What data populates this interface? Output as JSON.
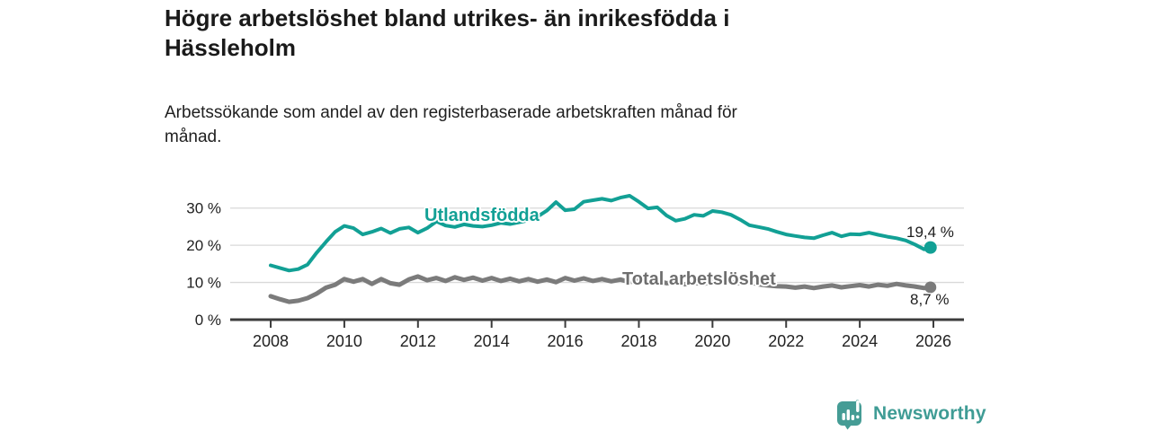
{
  "title": {
    "full": "Högre arbetslöshet bland utrikes- än inrikesfödda i Hässleholm",
    "lines": [
      "Högre arbetslöshet bland utrikes- än inrikesfödda i",
      "Hässleholm"
    ]
  },
  "subtitle": {
    "full": "Arbetssökande som andel av den registerbaserade arbetskraften månad för månad.",
    "lines": [
      "Arbetssökande som andel av den registerbaserade arbetskraften månad för",
      "månad."
    ]
  },
  "branding": {
    "logo_text": "Newsworthy",
    "logo_color": "#459c95",
    "logo_icon": "speech-bubble-bar-chart-exclamation"
  },
  "colors": {
    "background": "#ffffff",
    "title_text": "#1a1a1a",
    "axis_line": "#3c3c3c",
    "gridline": "#d9d9d9",
    "series_foreign_born": "#12a095",
    "series_total": "#7b7b7b"
  },
  "chart_data": {
    "type": "line",
    "title": "Högre arbetslöshet bland utrikes- än inrikesfödda i Hässleholm",
    "xlabel": "",
    "ylabel": "",
    "unit": "%",
    "grid": "horizontal",
    "legend_position": "inline-labels",
    "xlim": [
      2006.9,
      2026.83
    ],
    "ylim": [
      0,
      35
    ],
    "x_ticks": [
      2008,
      2010,
      2012,
      2014,
      2016,
      2018,
      2020,
      2022,
      2024,
      2026
    ],
    "x_tick_labels": [
      "2008",
      "2010",
      "2012",
      "2014",
      "2016",
      "2018",
      "2020",
      "2022",
      "2024",
      "2026"
    ],
    "y_ticks": [
      0,
      10,
      20,
      30
    ],
    "y_tick_labels": [
      "0 %",
      "10 %",
      "20 %",
      "30 %"
    ],
    "x": [
      2008.0,
      2008.25,
      2008.5,
      2008.75,
      2009.0,
      2009.25,
      2009.5,
      2009.75,
      2010.0,
      2010.25,
      2010.5,
      2010.75,
      2011.0,
      2011.25,
      2011.5,
      2011.75,
      2012.0,
      2012.25,
      2012.5,
      2012.75,
      2013.0,
      2013.25,
      2013.5,
      2013.75,
      2014.0,
      2014.25,
      2014.5,
      2014.75,
      2015.0,
      2015.25,
      2015.5,
      2015.75,
      2016.0,
      2016.25,
      2016.5,
      2016.75,
      2017.0,
      2017.25,
      2017.5,
      2017.75,
      2018.0,
      2018.25,
      2018.5,
      2018.75,
      2019.0,
      2019.25,
      2019.5,
      2019.75,
      2020.0,
      2020.25,
      2020.5,
      2020.75,
      2021.0,
      2021.25,
      2021.5,
      2021.75,
      2022.0,
      2022.25,
      2022.5,
      2022.75,
      2023.0,
      2023.25,
      2023.5,
      2023.75,
      2024.0,
      2024.25,
      2024.5,
      2024.75,
      2025.0,
      2025.25,
      2025.5,
      2025.75,
      2025.92
    ],
    "series": [
      {
        "name": "Utlandsfödda",
        "color": "#12a095",
        "stroke_width": 4,
        "end_label": "19,4 %",
        "last_value": 19.4,
        "values": [
          14.6,
          13.9,
          13.2,
          13.6,
          14.8,
          18.0,
          20.9,
          23.6,
          25.2,
          24.6,
          22.9,
          23.6,
          24.5,
          23.3,
          24.4,
          24.8,
          23.4,
          24.6,
          26.4,
          25.3,
          24.9,
          25.6,
          25.2,
          25.0,
          25.4,
          26.0,
          25.7,
          26.2,
          26.7,
          27.7,
          29.3,
          31.6,
          29.4,
          29.7,
          31.7,
          32.1,
          32.5,
          32.0,
          32.8,
          33.3,
          31.7,
          29.9,
          30.2,
          28.0,
          26.6,
          27.1,
          28.2,
          27.9,
          29.2,
          28.9,
          28.2,
          26.9,
          25.4,
          24.9,
          24.4,
          23.6,
          22.9,
          22.5,
          22.1,
          21.9,
          22.7,
          23.4,
          22.4,
          23.0,
          22.9,
          23.4,
          22.8,
          22.3,
          21.9,
          21.3,
          20.2,
          18.9,
          19.4
        ]
      },
      {
        "name": "Total arbetslöshet",
        "color": "#7b7b7b",
        "stroke_width": 5,
        "end_label": "8,7 %",
        "last_value": 8.7,
        "values": [
          6.3,
          5.5,
          4.8,
          5.1,
          5.8,
          7.0,
          8.6,
          9.4,
          10.9,
          10.2,
          10.9,
          9.6,
          10.9,
          9.8,
          9.4,
          10.8,
          11.6,
          10.6,
          11.2,
          10.4,
          11.4,
          10.7,
          11.3,
          10.5,
          11.2,
          10.4,
          11.0,
          10.3,
          10.9,
          10.2,
          10.8,
          10.1,
          11.2,
          10.5,
          11.1,
          10.4,
          10.9,
          10.3,
          10.8,
          10.1,
          10.6,
          10.0,
          10.5,
          9.8,
          10.0,
          9.5,
          9.9,
          9.6,
          10.2,
          10.5,
          10.1,
          9.8,
          10.0,
          9.5,
          9.2,
          9.0,
          8.9,
          8.6,
          8.9,
          8.5,
          8.9,
          9.2,
          8.7,
          9.0,
          9.3,
          8.9,
          9.4,
          9.1,
          9.6,
          9.2,
          8.9,
          8.5,
          8.7
        ]
      }
    ]
  }
}
